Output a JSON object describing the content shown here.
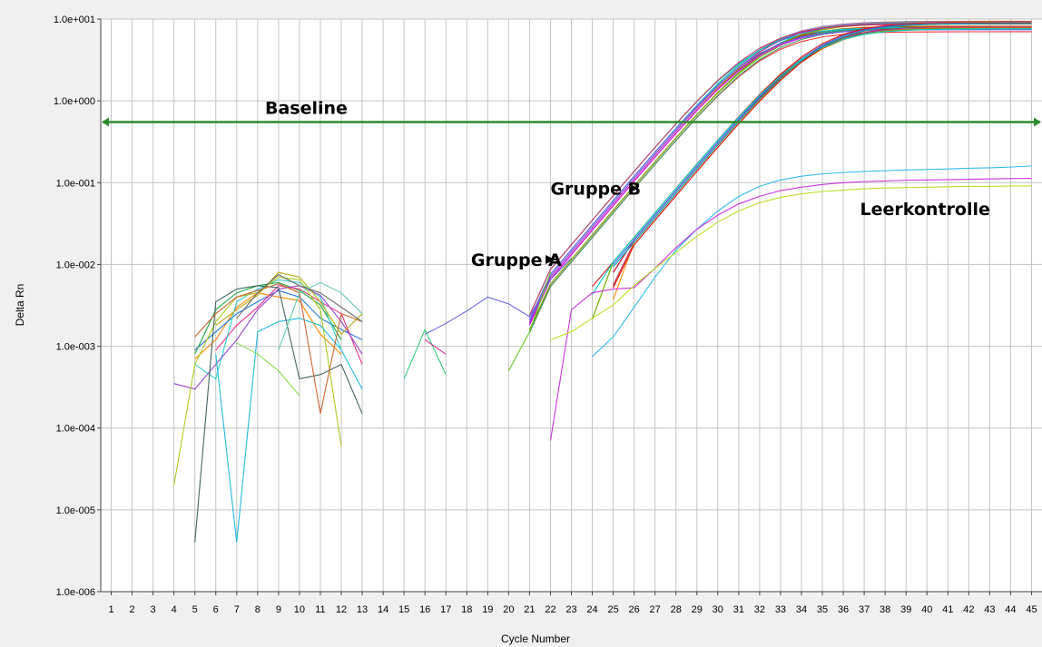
{
  "chart_data": {
    "type": "line",
    "xlabel": "Cycle Number",
    "ylabel": "Delta Rn",
    "xlim": [
      0.5,
      45.5
    ],
    "ylim": [
      1e-06,
      10
    ],
    "yscale": "log",
    "grid": true,
    "x_ticks": [
      1,
      2,
      3,
      4,
      5,
      6,
      7,
      8,
      9,
      10,
      11,
      12,
      13,
      14,
      15,
      16,
      17,
      18,
      19,
      20,
      21,
      22,
      23,
      24,
      25,
      26,
      27,
      28,
      29,
      30,
      31,
      32,
      33,
      34,
      35,
      36,
      37,
      38,
      39,
      40,
      41,
      42,
      43,
      44,
      45
    ],
    "y_tick_values": [
      10,
      1,
      0.1,
      0.01,
      0.001,
      0.0001,
      1e-05,
      1e-06
    ],
    "y_tick_labels": [
      "1.0e+001",
      "1.0e+000",
      "1.0e-001",
      "1.0e-002",
      "1.0e-003",
      "1.0e-004",
      "1.0e-005",
      "1.0e-006"
    ],
    "baseline": {
      "label": "Baseline",
      "y": 0.55,
      "color": "#2e8b2e"
    },
    "annotations": [
      {
        "text": "Gruppe B",
        "x": 22.0,
        "y": 0.085,
        "arrow_to": [
          26.2,
          0.085
        ]
      },
      {
        "text": "Gruppe A",
        "x": 18.2,
        "y": 0.0115,
        "arrow_to": [
          22.2,
          0.0115
        ]
      },
      {
        "text": "Leerkontrolle",
        "x": 36.8,
        "y": 0.048
      }
    ],
    "groups": [
      {
        "name": "Gruppe A",
        "ct": [
          22.9,
          22.6,
          22.6,
          22.6,
          22.4,
          22.8,
          22.4,
          22.2,
          22.8,
          22.6,
          22.4,
          22.6,
          22.5,
          22.9,
          22.8,
          22.6,
          22.2,
          22.4
        ]
      },
      {
        "name": "Gruppe B",
        "ct": [
          24.9,
          25.1,
          25.0,
          24.9,
          25.1,
          25.2,
          25.0,
          25.0,
          24.9,
          25.2,
          24.9,
          25.1
        ]
      },
      {
        "name": "Leerkontrolle",
        "series": [
          {
            "color": "#33bbee",
            "values": {
              "24": 0.00075,
              "25": 0.0013,
              "26": 0.003,
              "27": 0.007,
              "28": 0.015,
              "29": 0.027,
              "30": 0.045,
              "31": 0.068,
              "32": 0.09,
              "33": 0.108,
              "34": 0.12,
              "35": 0.128,
              "36": 0.133,
              "37": 0.137,
              "38": 0.14,
              "39": 0.143,
              "40": 0.145,
              "41": 0.147,
              "42": 0.15,
              "43": 0.152,
              "44": 0.155,
              "45": 0.16
            }
          },
          {
            "color": "#cc33dd",
            "values": {
              "22": 7e-05,
              "23": 0.0028,
              "24": 0.0045,
              "25": 0.005,
              "26": 0.0052,
              "27": 0.009,
              "28": 0.016,
              "29": 0.027,
              "30": 0.04,
              "31": 0.055,
              "32": 0.068,
              "33": 0.08,
              "34": 0.088,
              "35": 0.095,
              "36": 0.1,
              "37": 0.103,
              "38": 0.105,
              "39": 0.107,
              "40": 0.108,
              "41": 0.109,
              "42": 0.11,
              "43": 0.111,
              "44": 0.112,
              "45": 0.113
            }
          },
          {
            "color": "#b8e02a",
            "values": {
              "22": 0.0012,
              "23": 0.0015,
              "24": 0.0022,
              "25": 0.0032,
              "26": 0.0055,
              "27": 0.009,
              "28": 0.014,
              "29": 0.022,
              "30": 0.033,
              "31": 0.045,
              "32": 0.057,
              "33": 0.066,
              "34": 0.073,
              "35": 0.078,
              "36": 0.081,
              "37": 0.084,
              "38": 0.086,
              "39": 0.087,
              "40": 0.088,
              "41": 0.089,
              "42": 0.09,
              "43": 0.09,
              "44": 0.091,
              "45": 0.091
            }
          }
        ]
      }
    ],
    "noise_series": [
      {
        "color": "#ff8800",
        "values": {
          "5": 0.0007,
          "6": 0.0012,
          "7": 0.003,
          "8": 0.0045,
          "9": 0.004,
          "10": 0.0036,
          "11": 0.0014,
          "12": 0.0008
        }
      },
      {
        "color": "#2277dd",
        "values": {
          "5": 0.0009,
          "6": 0.0015,
          "7": 0.0025,
          "8": 0.0035,
          "9": 0.0048,
          "10": 0.004,
          "11": 0.0022,
          "12": 0.0016,
          "13": 0.0012
        }
      },
      {
        "color": "#22aa44",
        "values": {
          "5": 0.0008,
          "6": 0.0028,
          "7": 0.0045,
          "8": 0.0055,
          "9": 0.006,
          "10": 0.0048,
          "11": 0.0032,
          "12": 0.0012
        }
      },
      {
        "color": "#ee3388",
        "values": {
          "6": 0.0009,
          "7": 0.0018,
          "8": 0.003,
          "9": 0.0055,
          "10": 0.005,
          "11": 0.0035,
          "12": 0.0025,
          "13": 0.0006
        }
      },
      {
        "color": "#33cccc",
        "values": {
          "5": 0.0006,
          "6": 0.0004,
          "7": 0.0035,
          "8": 0.005,
          "9": 0.0065,
          "10": 0.006,
          "11": 0.004,
          "12": 0.0009
        }
      },
      {
        "color": "#9944cc",
        "values": {
          "4": 0.00035,
          "5": 0.0003,
          "6": 0.0006,
          "7": 0.0012,
          "8": 0.0028,
          "9": 0.005,
          "10": 0.0055,
          "11": 0.0042,
          "12": 0.002,
          "13": 0.0008
        }
      },
      {
        "color": "#aacc22",
        "values": {
          "4": 2e-05,
          "5": 0.0006,
          "6": 0.002,
          "7": 0.004,
          "8": 0.0045,
          "9": 0.007,
          "10": 0.0065,
          "11": 0.0028,
          "12": 6e-05
        }
      },
      {
        "color": "#22bbdd",
        "values": {
          "6": 0.0008,
          "7": 4e-06,
          "8": 0.0015,
          "9": 0.002,
          "10": 0.0022,
          "11": 0.0018,
          "12": 0.0009,
          "13": 0.0003
        }
      },
      {
        "color": "#446666",
        "values": {
          "5": 4e-06,
          "6": 0.0035,
          "7": 0.005,
          "8": 0.0055,
          "9": 0.0052,
          "10": 0.0004,
          "11": 0.00045,
          "12": 0.0006,
          "13": 0.00015
        }
      },
      {
        "color": "#cc6633",
        "values": {
          "5": 0.0013,
          "6": 0.0025,
          "7": 0.004,
          "8": 0.0048,
          "9": 0.0058,
          "10": 0.0045,
          "11": 0.00015,
          "12": 0.0025,
          "13": 0.002
        }
      },
      {
        "color": "#bbaa11",
        "values": {
          "6": 0.0018,
          "7": 0.0028,
          "8": 0.0042,
          "9": 0.008,
          "10": 0.007,
          "11": 0.0035,
          "12": 0.0014,
          "13": 0.0025
        }
      },
      {
        "color": "#666666",
        "values": {
          "7": 0.0022,
          "8": 0.0045,
          "9": 0.0075,
          "10": 0.0055,
          "11": 0.0045,
          "12": 0.003,
          "13": 0.002
        }
      },
      {
        "color": "#88dd55",
        "values": {
          "7": 0.0011,
          "8": 0.0008,
          "9": 0.0005,
          "10": 0.00025
        }
      },
      {
        "color": "#66ccaa",
        "values": {
          "9": 0.0009,
          "10": 0.0045,
          "11": 0.006,
          "12": 0.0045,
          "13": 0.0025
        }
      },
      {
        "color": "#6666dd",
        "values": {
          "16": 0.0014,
          "17": 0.0019,
          "18": 0.0027,
          "19": 0.004,
          "20": 0.0033,
          "21": 0.0023,
          "22": 0.0065,
          "23": 0.012
        }
      },
      {
        "color": "#33cc77",
        "values": {
          "15": 0.0004,
          "16": 0.0016,
          "17": 0.00045
        }
      },
      {
        "color": "#dd3399",
        "values": {
          "16": 0.0012,
          "17": 0.0008
        }
      },
      {
        "color": "#66cc22",
        "values": {
          "20": 0.0005,
          "21": 0.0015,
          "22": 0.008
        }
      }
    ]
  }
}
